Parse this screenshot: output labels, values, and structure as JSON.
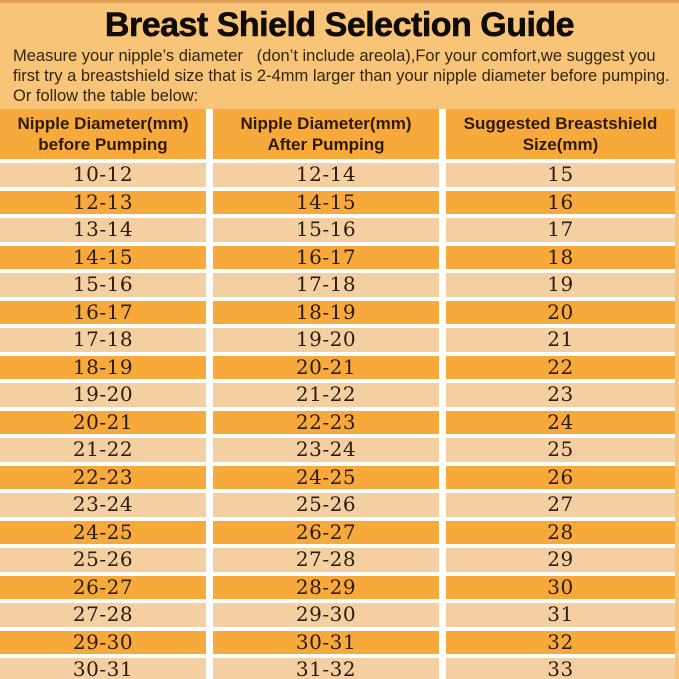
{
  "page": {
    "title": "Breast Shield Selection Guide",
    "intro_lines": [
      "Measure your nipple’s diameter   (don’t include areola),For your comfort,we suggest you",
      "first try a breastshield size that is 2-4mm larger than your nipple diameter before pumping.",
      "Or follow the table below:"
    ]
  },
  "table": {
    "headers": [
      {
        "line1": "Nipple Diameter(mm)",
        "line2": "before Pumping"
      },
      {
        "line1": "Nipple Diameter(mm)",
        "line2": "After Pumping"
      },
      {
        "line1": "Suggested Breastshield",
        "line2": "Size(mm)"
      }
    ],
    "rows": [
      [
        "10-12",
        "12-14",
        "15"
      ],
      [
        "12-13",
        "14-15",
        "16"
      ],
      [
        "13-14",
        "15-16",
        "17"
      ],
      [
        "14-15",
        "16-17",
        "18"
      ],
      [
        "15-16",
        "17-18",
        "19"
      ],
      [
        "16-17",
        "18-19",
        "20"
      ],
      [
        "17-18",
        "19-20",
        "21"
      ],
      [
        "18-19",
        "20-21",
        "22"
      ],
      [
        "19-20",
        "21-22",
        "23"
      ],
      [
        "20-21",
        "22-23",
        "24"
      ],
      [
        "21-22",
        "23-24",
        "25"
      ],
      [
        "22-23",
        "24-25",
        "26"
      ],
      [
        "23-24",
        "25-26",
        "27"
      ],
      [
        "24-25",
        "26-27",
        "28"
      ],
      [
        "25-26",
        "27-28",
        "29"
      ],
      [
        "26-27",
        "28-29",
        "30"
      ],
      [
        "27-28",
        "29-30",
        "31"
      ],
      [
        "29-30",
        "30-31",
        "32"
      ],
      [
        "30-31",
        "31-32",
        "33"
      ]
    ]
  },
  "colors": {
    "page_background": "#f8c478",
    "header_row": "#f8a93c",
    "row_dark": "#f8a93c",
    "row_light": "#f3cfa2",
    "separator": "#ffffff",
    "text": "#2a1a0a"
  },
  "chart_data": {
    "type": "table",
    "title": "Breast Shield Selection Guide",
    "columns": [
      "Nipple Diameter(mm) before Pumping",
      "Nipple Diameter(mm) After Pumping",
      "Suggested Breastshield Size(mm)"
    ],
    "rows": [
      [
        "10-12",
        "12-14",
        15
      ],
      [
        "12-13",
        "14-15",
        16
      ],
      [
        "13-14",
        "15-16",
        17
      ],
      [
        "14-15",
        "16-17",
        18
      ],
      [
        "15-16",
        "17-18",
        19
      ],
      [
        "16-17",
        "18-19",
        20
      ],
      [
        "17-18",
        "19-20",
        21
      ],
      [
        "18-19",
        "20-21",
        22
      ],
      [
        "19-20",
        "21-22",
        23
      ],
      [
        "20-21",
        "22-23",
        24
      ],
      [
        "21-22",
        "23-24",
        25
      ],
      [
        "22-23",
        "24-25",
        26
      ],
      [
        "23-24",
        "25-26",
        27
      ],
      [
        "24-25",
        "26-27",
        28
      ],
      [
        "25-26",
        "27-28",
        29
      ],
      [
        "26-27",
        "28-29",
        30
      ],
      [
        "27-28",
        "29-30",
        31
      ],
      [
        "29-30",
        "30-31",
        32
      ],
      [
        "30-31",
        "31-32",
        33
      ]
    ]
  }
}
